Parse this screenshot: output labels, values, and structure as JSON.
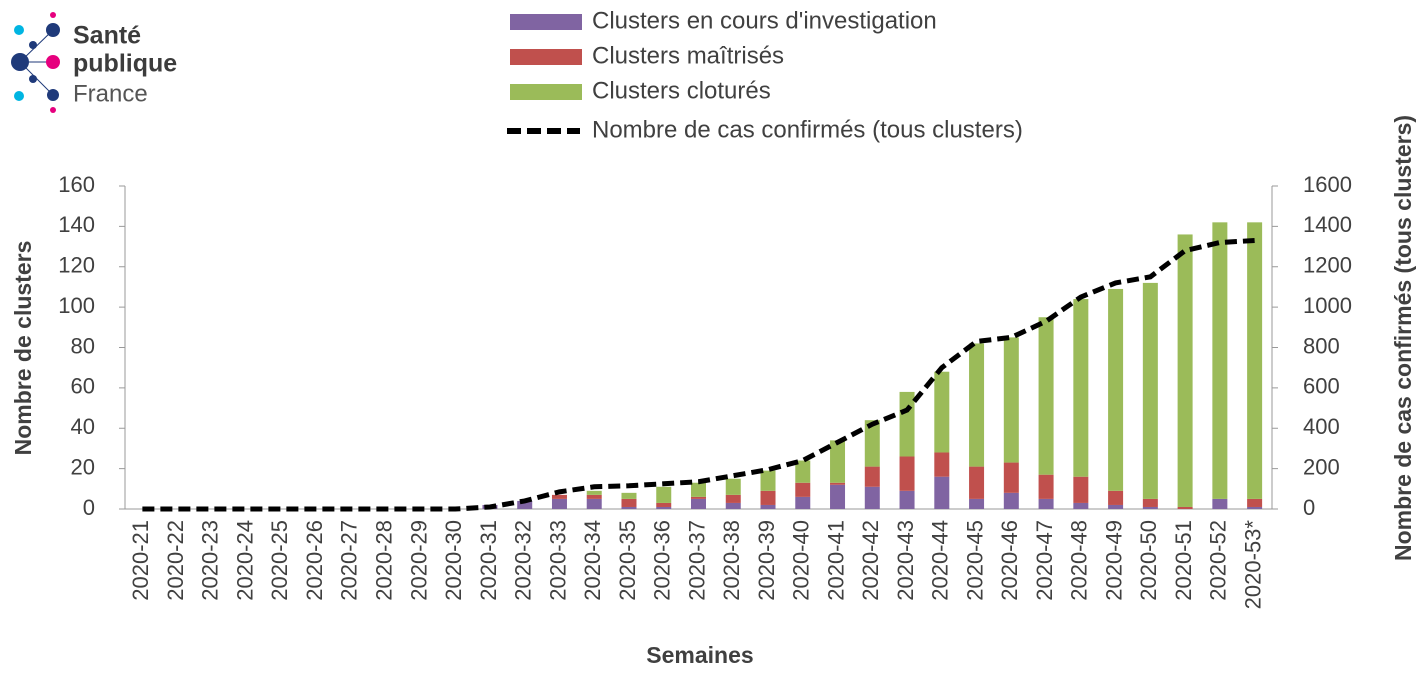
{
  "logo": {
    "line1": "Santé",
    "line2": "publique",
    "line3": "France"
  },
  "chart_data": {
    "type": "bar",
    "x_label": "Semaines",
    "y_label": "Nombre de clusters",
    "y2_label": "Nombre de cas confirmés (tous clusters)",
    "categories": [
      "2020-21",
      "2020-22",
      "2020-23",
      "2020-24",
      "2020-25",
      "2020-26",
      "2020-27",
      "2020-28",
      "2020-29",
      "2020-30",
      "2020-31",
      "2020-32",
      "2020-33",
      "2020-34",
      "2020-35",
      "2020-36",
      "2020-37",
      "2020-38",
      "2020-39",
      "2020-40",
      "2020-41",
      "2020-42",
      "2020-43",
      "2020-44",
      "2020-45",
      "2020-46",
      "2020-47",
      "2020-48",
      "2020-49",
      "2020-50",
      "2020-51",
      "2020-52",
      "2020-53*"
    ],
    "stacked": true,
    "series": [
      {
        "name": "Clusters en cours d'investigation",
        "color": "#8064a2",
        "type": "bar",
        "values": [
          0,
          0,
          0,
          0,
          0,
          0,
          0,
          0,
          0,
          0,
          2,
          4,
          5,
          5,
          1,
          1,
          5,
          3,
          2,
          6,
          12,
          11,
          9,
          16,
          5,
          8,
          5,
          3,
          2,
          1,
          0,
          5,
          1
        ]
      },
      {
        "name": "Clusters maîtrisés",
        "color": "#c0504d",
        "type": "bar",
        "values": [
          0,
          0,
          0,
          0,
          0,
          0,
          0,
          0,
          0,
          0,
          0,
          0,
          2,
          2,
          4,
          2,
          1,
          4,
          7,
          7,
          1,
          10,
          17,
          12,
          16,
          15,
          12,
          13,
          7,
          4,
          1,
          0,
          4
        ]
      },
      {
        "name": "Clusters cloturés",
        "color": "#9bbb59",
        "type": "bar",
        "values": [
          0,
          0,
          0,
          0,
          0,
          0,
          0,
          0,
          0,
          0,
          0,
          0,
          0,
          2,
          3,
          8,
          7,
          8,
          10,
          11,
          21,
          23,
          32,
          40,
          61,
          62,
          78,
          88,
          100,
          107,
          135,
          137,
          137
        ]
      },
      {
        "name": "Nombre de cas confirmés (tous clusters)",
        "color": "#000000",
        "type": "line",
        "axis": "y2",
        "dashed": true,
        "values": [
          0,
          0,
          0,
          0,
          0,
          0,
          0,
          0,
          0,
          0,
          10,
          40,
          85,
          110,
          115,
          125,
          135,
          165,
          195,
          240,
          330,
          420,
          490,
          700,
          830,
          850,
          930,
          1050,
          1120,
          1150,
          1280,
          1320,
          1330
        ]
      }
    ],
    "ylim": [
      0,
      160
    ],
    "yticks": [
      0,
      20,
      40,
      60,
      80,
      100,
      120,
      140,
      160
    ],
    "y2lim": [
      0,
      1600
    ],
    "y2ticks": [
      0,
      200,
      400,
      600,
      800,
      1000,
      1200,
      1400,
      1600
    ],
    "grid": false,
    "legend": "top"
  }
}
